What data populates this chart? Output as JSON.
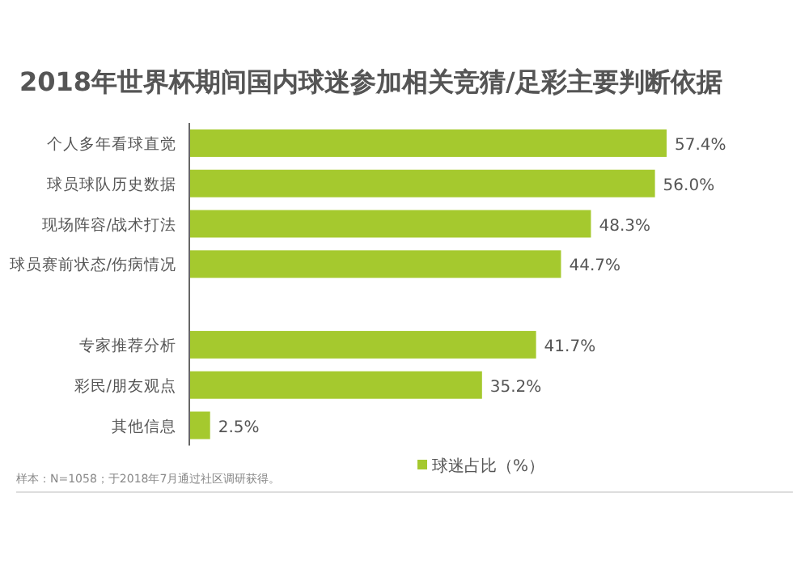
{
  "chart_data": {
    "type": "bar",
    "orientation": "horizontal",
    "title": "2018年世界杯期间国内球迷参加相关竞猜/足彩主要判断依据",
    "categories": [
      "个人多年看球直觉",
      "球员球队历史数据",
      "现场阵容/战术打法",
      "球员赛前状态/伤病情况",
      null,
      "专家推荐分析",
      "彩民/朋友观点",
      "其他信息"
    ],
    "series": [
      {
        "name": "球迷占比（%）",
        "color": "#a5c92e",
        "values": [
          57.4,
          56.0,
          48.3,
          44.7,
          null,
          41.7,
          35.2,
          2.5
        ],
        "value_labels": [
          "57.4%",
          "56.0%",
          "48.3%",
          "44.7%",
          null,
          "41.7%",
          "35.2%",
          "2.5%"
        ]
      }
    ],
    "relative": false,
    "legend": "bottom",
    "annotations": [
      "样本：N=1058；于2018年7月通过社区调研获得。"
    ]
  }
}
